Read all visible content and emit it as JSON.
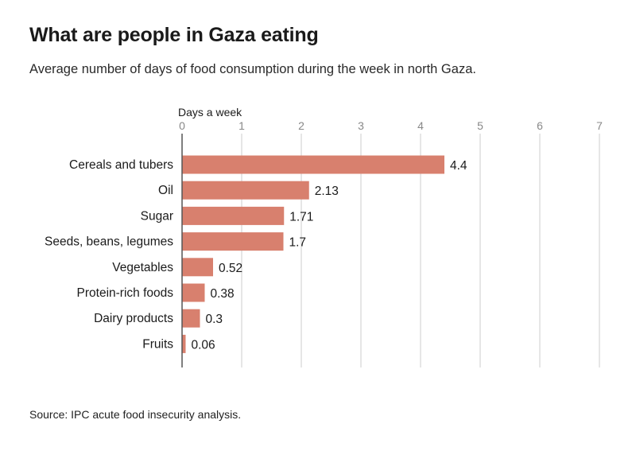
{
  "header": {
    "title": "What are people in Gaza eating",
    "subtitle": "Average number of days of food consumption during the week in north Gaza."
  },
  "footer": {
    "source": "Source: IPC acute food insecurity analysis."
  },
  "colors": {
    "bar": "#d8806e",
    "grid": "#cccccc",
    "axis": "#555555",
    "tick": "#888888"
  },
  "chart_data": {
    "type": "bar",
    "orientation": "horizontal",
    "xlabel": "Days a week",
    "xlim": [
      0,
      7
    ],
    "xticks": [
      0,
      1,
      2,
      3,
      4,
      5,
      6,
      7
    ],
    "grid": true,
    "categories": [
      "Cereals and tubers",
      "Oil",
      "Sugar",
      "Seeds, beans, legumes",
      "Vegetables",
      "Protein-rich foods",
      "Dairy products",
      "Fruits"
    ],
    "values": [
      4.4,
      2.13,
      1.71,
      1.7,
      0.52,
      0.38,
      0.3,
      0.06
    ],
    "value_labels": [
      "4.4",
      "2.13",
      "1.71",
      "1.7",
      "0.52",
      "0.38",
      "0.3",
      "0.06"
    ]
  }
}
